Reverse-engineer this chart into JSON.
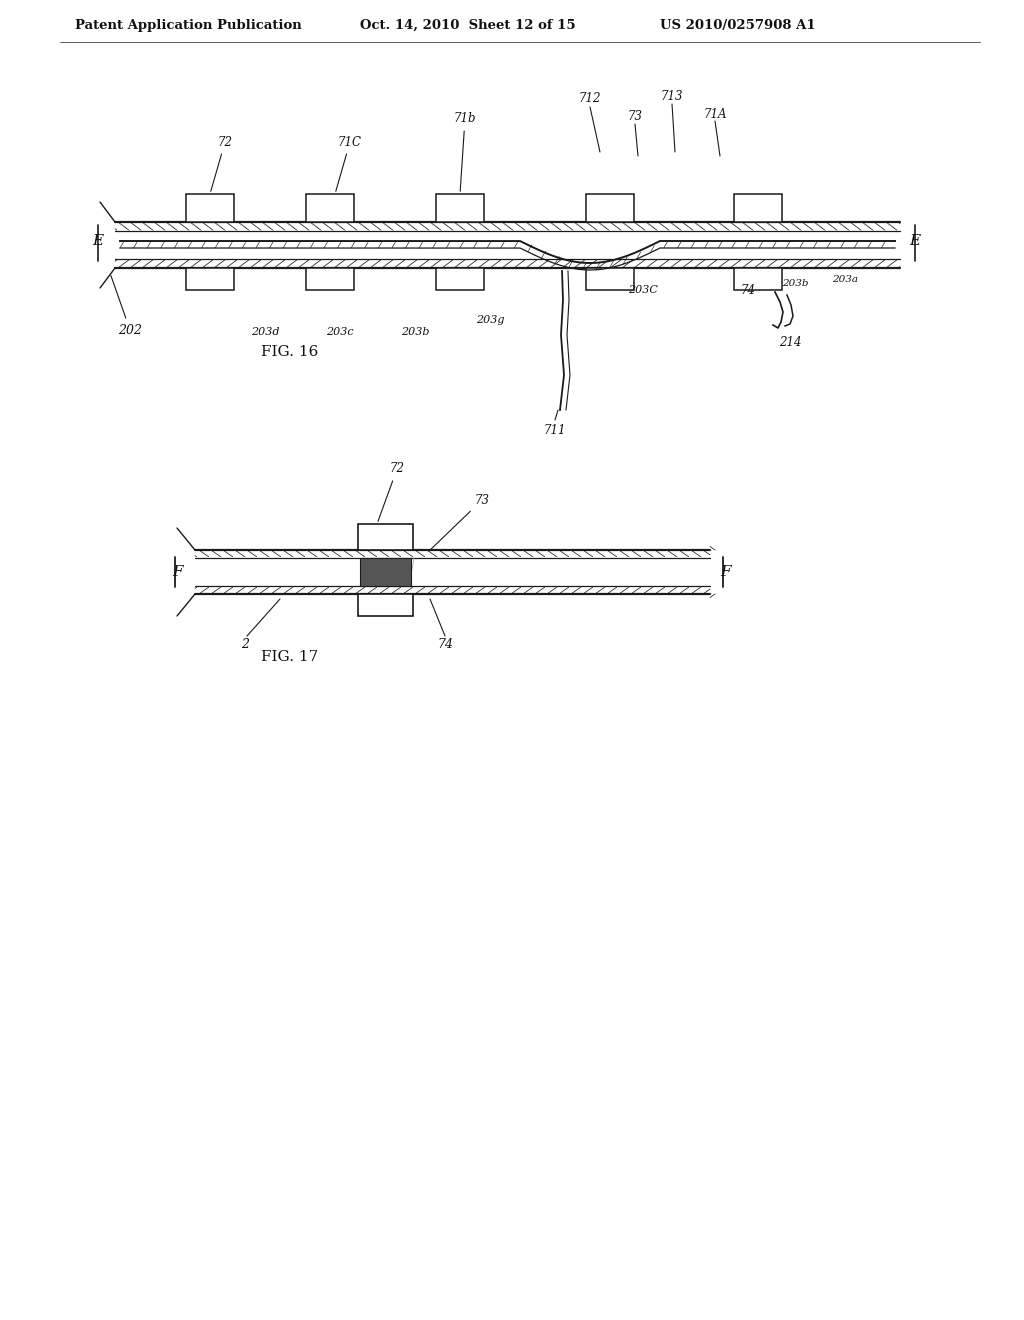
{
  "background_color": "#ffffff",
  "header_text": "Patent Application Publication",
  "header_date": "Oct. 14, 2010  Sheet 12 of 15",
  "header_patent": "US 2010/0257908 A1",
  "fig16_label": "FIG. 16",
  "fig17_label": "FIG. 17",
  "line_color": "#1a1a1a",
  "text_color": "#111111"
}
